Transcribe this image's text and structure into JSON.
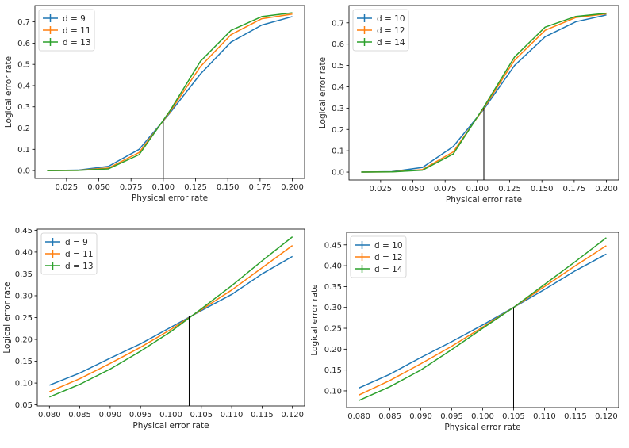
{
  "colors": {
    "series": [
      "#1f77b4",
      "#ff7f0e",
      "#2ca02c"
    ],
    "threshold": "#000000",
    "axis": "#000000",
    "legend_border": "#cccccc"
  },
  "chart_data": [
    {
      "type": "line",
      "xlabel": "Physical error rate",
      "ylabel": "Logical error rate",
      "xlim": [
        0.0005,
        0.2095
      ],
      "ylim": [
        -0.037,
        0.777
      ],
      "xticks": [
        0.025,
        0.05,
        0.075,
        0.1,
        0.125,
        0.15,
        0.175,
        0.2
      ],
      "xtick_labels": [
        "0.025",
        "0.050",
        "0.075",
        "0.100",
        "0.125",
        "0.150",
        "0.175",
        "0.200"
      ],
      "yticks": [
        0,
        0.1,
        0.2,
        0.3,
        0.4,
        0.5,
        0.6,
        0.7
      ],
      "ytick_labels": [
        "0.0",
        "0.1",
        "0.2",
        "0.3",
        "0.4",
        "0.5",
        "0.6",
        "0.7"
      ],
      "threshold": {
        "x": 0.1,
        "y": 0.24
      },
      "legend": "top-left",
      "x": [
        0.01,
        0.0337,
        0.0575,
        0.0813,
        0.105,
        0.1288,
        0.1525,
        0.1763,
        0.2
      ],
      "series": [
        {
          "name": "d = 9",
          "values": [
            0,
            0.002,
            0.02,
            0.1,
            0.27,
            0.455,
            0.605,
            0.685,
            0.725
          ]
        },
        {
          "name": "d = 11",
          "values": [
            0,
            0.001,
            0.012,
            0.085,
            0.275,
            0.49,
            0.64,
            0.715,
            0.737
          ]
        },
        {
          "name": "d = 13",
          "values": [
            0,
            0.001,
            0.008,
            0.075,
            0.28,
            0.515,
            0.66,
            0.725,
            0.743
          ]
        }
      ]
    },
    {
      "type": "line",
      "xlabel": "Physical error rate",
      "ylabel": "Logical error rate",
      "xlim": [
        0.0005,
        0.2095
      ],
      "ylim": [
        -0.037,
        0.781
      ],
      "xticks": [
        0.025,
        0.05,
        0.075,
        0.1,
        0.125,
        0.15,
        0.175,
        0.2
      ],
      "xtick_labels": [
        "0.025",
        "0.050",
        "0.075",
        "0.100",
        "0.125",
        "0.150",
        "0.175",
        "0.200"
      ],
      "yticks": [
        0,
        0.1,
        0.2,
        0.3,
        0.4,
        0.5,
        0.6,
        0.7
      ],
      "ytick_labels": [
        "0.0",
        "0.1",
        "0.2",
        "0.3",
        "0.4",
        "0.5",
        "0.6",
        "0.7"
      ],
      "threshold": {
        "x": 0.105,
        "y": 0.3
      },
      "legend": "top-left",
      "x": [
        0.01,
        0.0337,
        0.0575,
        0.0813,
        0.105,
        0.1288,
        0.1525,
        0.1763,
        0.2
      ],
      "series": [
        {
          "name": "d = 10",
          "values": [
            0,
            0.002,
            0.022,
            0.12,
            0.295,
            0.5,
            0.635,
            0.705,
            0.737
          ]
        },
        {
          "name": "d = 12",
          "values": [
            0,
            0.001,
            0.012,
            0.095,
            0.3,
            0.525,
            0.665,
            0.725,
            0.742
          ]
        },
        {
          "name": "d = 14",
          "values": [
            0,
            0.001,
            0.009,
            0.085,
            0.305,
            0.54,
            0.68,
            0.73,
            0.745
          ]
        }
      ]
    },
    {
      "type": "line",
      "xlabel": "Physical error rate",
      "ylabel": "Logical error rate",
      "xlim": [
        0.078,
        0.122
      ],
      "ylim": [
        0.0475,
        0.4525
      ],
      "xticks": [
        0.08,
        0.085,
        0.09,
        0.095,
        0.1,
        0.105,
        0.11,
        0.115,
        0.12
      ],
      "xtick_labels": [
        "0.080",
        "0.085",
        "0.090",
        "0.095",
        "0.100",
        "0.105",
        "0.110",
        "0.115",
        "0.120"
      ],
      "yticks": [
        0.05,
        0.1,
        0.15,
        0.2,
        0.25,
        0.3,
        0.35,
        0.4,
        0.45
      ],
      "ytick_labels": [
        "0.05",
        "0.10",
        "0.15",
        "0.20",
        "0.25",
        "0.30",
        "0.35",
        "0.40",
        "0.45"
      ],
      "threshold": {
        "x": 0.103,
        "y": 0.254
      },
      "legend": "top-left",
      "x": [
        0.08,
        0.085,
        0.09,
        0.095,
        0.1,
        0.105,
        0.11,
        0.115,
        0.12
      ],
      "series": [
        {
          "name": "d = 9",
          "values": [
            0.095,
            0.123,
            0.157,
            0.19,
            0.228,
            0.266,
            0.303,
            0.35,
            0.39
          ]
        },
        {
          "name": "d = 11",
          "values": [
            0.08,
            0.11,
            0.145,
            0.182,
            0.223,
            0.268,
            0.313,
            0.364,
            0.415
          ]
        },
        {
          "name": "d = 13",
          "values": [
            0.068,
            0.097,
            0.132,
            0.173,
            0.218,
            0.27,
            0.323,
            0.38,
            0.435
          ]
        }
      ]
    },
    {
      "type": "line",
      "xlabel": "Physical error rate",
      "ylabel": "Logical error rate",
      "xlim": [
        0.078,
        0.122
      ],
      "ylim": [
        0.06,
        0.48
      ],
      "xticks": [
        0.08,
        0.085,
        0.09,
        0.095,
        0.1,
        0.105,
        0.11,
        0.115,
        0.12
      ],
      "xtick_labels": [
        "0.080",
        "0.085",
        "0.090",
        "0.095",
        "0.100",
        "0.105",
        "0.110",
        "0.115",
        "0.120"
      ],
      "yticks": [
        0.1,
        0.15,
        0.2,
        0.25,
        0.3,
        0.35,
        0.4,
        0.45
      ],
      "ytick_labels": [
        "0.10",
        "0.15",
        "0.20",
        "0.25",
        "0.30",
        "0.35",
        "0.40",
        "0.45"
      ],
      "threshold": {
        "x": 0.105,
        "y": 0.3
      },
      "legend": "top-left",
      "x": [
        0.08,
        0.085,
        0.09,
        0.095,
        0.1,
        0.105,
        0.11,
        0.115,
        0.12
      ],
      "series": [
        {
          "name": "d = 10",
          "values": [
            0.107,
            0.14,
            0.18,
            0.218,
            0.258,
            0.3,
            0.343,
            0.388,
            0.428
          ]
        },
        {
          "name": "d = 12",
          "values": [
            0.09,
            0.125,
            0.165,
            0.207,
            0.253,
            0.3,
            0.35,
            0.4,
            0.448
          ]
        },
        {
          "name": "d = 14",
          "values": [
            0.077,
            0.11,
            0.15,
            0.199,
            0.25,
            0.3,
            0.355,
            0.41,
            0.467
          ]
        }
      ]
    }
  ]
}
